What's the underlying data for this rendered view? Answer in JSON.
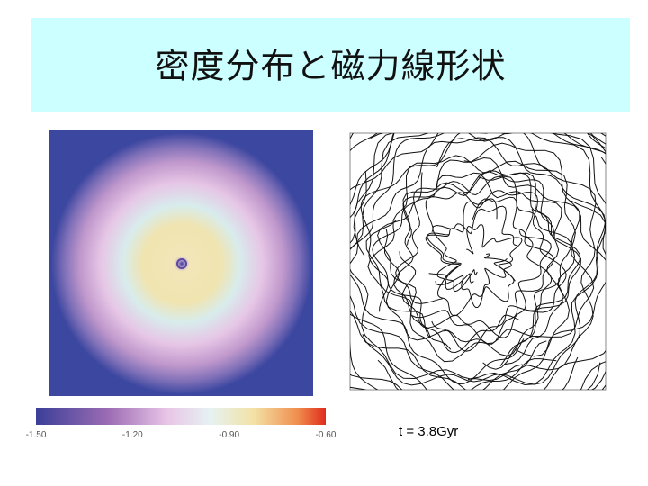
{
  "header": {
    "title": "密度分布と磁力線形状"
  },
  "density_map": {
    "colorbar": {
      "ticks": [
        "-1.50",
        "-1.20",
        "-0.90",
        "-0.60"
      ]
    }
  },
  "field_lines": {
    "caption": "t = 3.8Gyr"
  }
}
